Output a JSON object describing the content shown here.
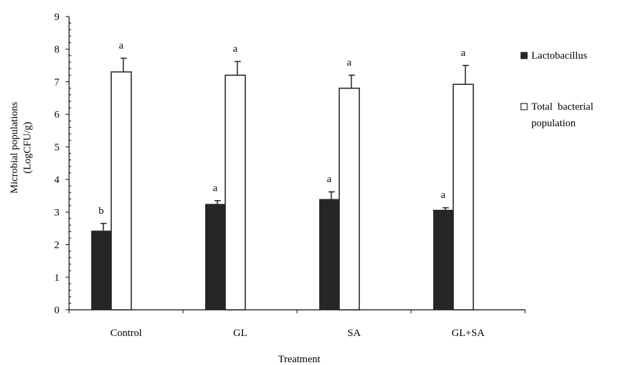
{
  "chart_data": {
    "type": "bar",
    "title": "",
    "xlabel": "Treatment",
    "ylabel_lines": [
      "Microbial populations",
      "(LogCFU/g)"
    ],
    "categories": [
      "Control",
      "GL",
      "SA",
      "GL+SA"
    ],
    "ylim": [
      0,
      9
    ],
    "yticks": [
      "0",
      "1",
      "2",
      "3",
      "4",
      "5",
      "6",
      "7",
      "8",
      "9"
    ],
    "grid": false,
    "legend_position": "right",
    "series": [
      {
        "name": "Lactobacillus",
        "color": "#262626",
        "fill": "solid",
        "values": [
          2.43,
          3.25,
          3.4,
          3.07
        ],
        "errors": [
          0.22,
          0.1,
          0.22,
          0.06
        ],
        "significance": [
          "b",
          "a",
          "a",
          "a"
        ]
      },
      {
        "name": "Total bacterial population",
        "name_lines": [
          "Total  bacterial",
          "population"
        ],
        "color": "#ffffff",
        "fill": "hollow",
        "values": [
          7.3,
          7.2,
          6.8,
          6.92
        ],
        "errors": [
          0.42,
          0.42,
          0.4,
          0.58
        ],
        "significance": [
          "a",
          "a",
          "a",
          "a"
        ]
      }
    ]
  }
}
